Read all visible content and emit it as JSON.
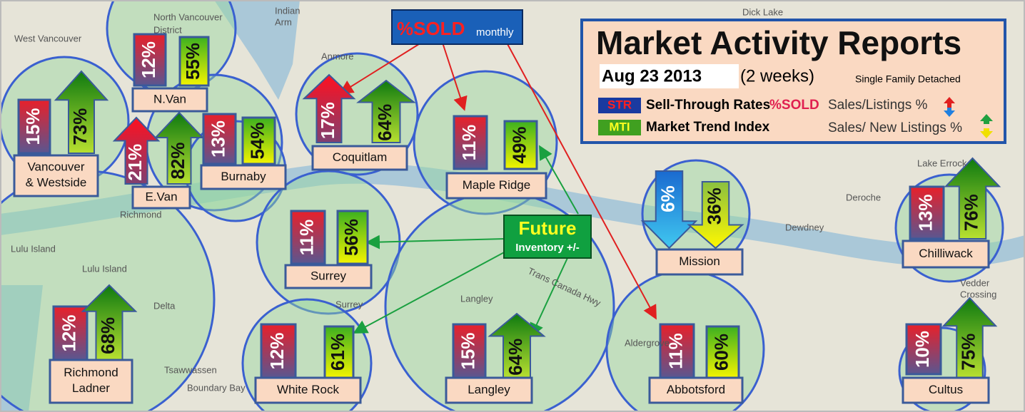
{
  "header": {
    "title": "Market Activity Reports",
    "date": "Aug 23 2013",
    "period": "(2 weeks)",
    "segment": "Single Family Detached"
  },
  "legend": [
    {
      "code": "STR",
      "name": "Sell-Through Rates",
      "extra": "%SOLD",
      "formula": "Sales/Listings %"
    },
    {
      "code": "MTI",
      "name": "Market Trend Index",
      "formula": "Sales/ New Listings %"
    }
  ],
  "callouts": [
    {
      "title": "%SOLD",
      "note": "monthly"
    },
    {
      "title": "Future",
      "note": "Inventory +/-"
    }
  ],
  "regions": [
    {
      "name": "N.Van",
      "str": "12%",
      "mti": "55%"
    },
    {
      "name": "Vancouver & Westside",
      "str": "15%",
      "mti": "73%"
    },
    {
      "name": "E.Van",
      "str": "21%",
      "mti": "82%"
    },
    {
      "name": "Burnaby",
      "str": "13%",
      "mti": "54%"
    },
    {
      "name": "Coquitlam",
      "str": "17%",
      "mti": "64%"
    },
    {
      "name": "Maple Ridge",
      "str": "11%",
      "mti": "49%"
    },
    {
      "name": "Surrey",
      "str": "11%",
      "mti": "56%"
    },
    {
      "name": "White Rock",
      "str": "12%",
      "mti": "61%"
    },
    {
      "name": "Langley",
      "str": "15%",
      "mti": "64%"
    },
    {
      "name": "Richmond Ladner",
      "str": "12%",
      "mti": "68%"
    },
    {
      "name": "Mission",
      "str": "6%",
      "mti": "36%"
    },
    {
      "name": "Abbotsford",
      "str": "11%",
      "mti": "60%"
    },
    {
      "name": "Chilliwack",
      "str": "13%",
      "mti": "76%"
    },
    {
      "name": "Cultus",
      "str": "10%",
      "mti": "75%"
    }
  ],
  "map_labels": [
    "North Vancouver",
    "District",
    "West Vancouver",
    "Indian",
    "Arm",
    "Dick Lake",
    "Anmore",
    "Richmond",
    "Lulu Island",
    "Lulu Island",
    "Delta",
    "Tsawwassen",
    "Boundary Bay",
    "Surrey",
    "Langley",
    "Aldergrove",
    "Deroche",
    "Dewdney",
    "Lake Errock",
    "Vedder",
    "Crossing",
    "Trans Canada Hwy"
  ]
}
